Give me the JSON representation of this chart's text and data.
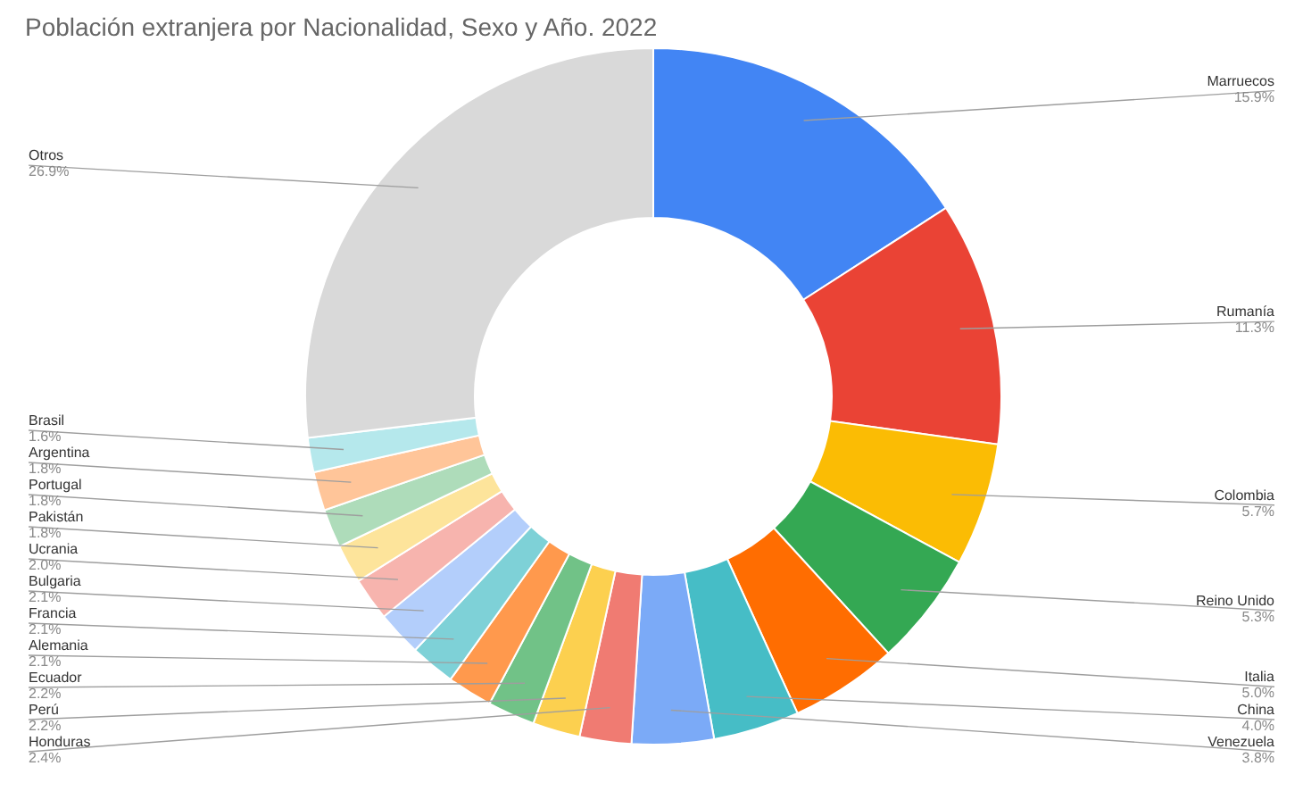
{
  "chart_data": {
    "type": "donut",
    "title": "Población extranjera por Nacionalidad, Sexo y Año. 2022",
    "categories": [
      "Marruecos",
      "Rumanía",
      "Colombia",
      "Reino Unido",
      "Italia",
      "China",
      "Venezuela",
      "Honduras",
      "Perú",
      "Ecuador",
      "Alemania",
      "Francia",
      "Bulgaria",
      "Ucrania",
      "Pakistán",
      "Portugal",
      "Argentina",
      "Brasil",
      "Otros"
    ],
    "values": [
      15.9,
      11.3,
      5.7,
      5.3,
      5.0,
      4.0,
      3.8,
      2.4,
      2.2,
      2.2,
      2.1,
      2.1,
      2.1,
      2.0,
      1.8,
      1.8,
      1.8,
      1.6,
      26.9
    ],
    "value_labels": [
      "15.9%",
      "11.3%",
      "5.7%",
      "5.3%",
      "5.0%",
      "4.0%",
      "3.8%",
      "2.4%",
      "2.2%",
      "2.2%",
      "2.1%",
      "2.1%",
      "2.1%",
      "2.0%",
      "1.8%",
      "1.8%",
      "1.8%",
      "1.6%",
      "26.9%"
    ],
    "colors": [
      "#4285f4",
      "#ea4335",
      "#fbbc04",
      "#34a853",
      "#ff6d01",
      "#46bdc6",
      "#7baaf7",
      "#f07b72",
      "#fcd04f",
      "#71c287",
      "#ff994d",
      "#7ed1d7",
      "#b3cefb",
      "#f7b4ae",
      "#fde49b",
      "#aedcba",
      "#ffc599",
      "#b5e8ec",
      "#d9d9d9"
    ]
  }
}
